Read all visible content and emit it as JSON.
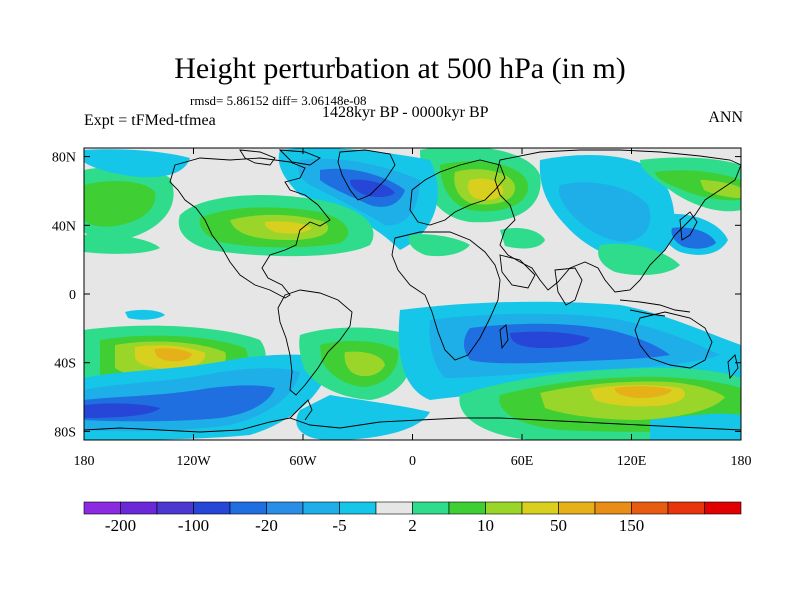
{
  "title": "Height perturbation at 500 hPa (in m)",
  "stats": "rmsd= 5.86152 diff= 3.06148e-08",
  "period": "1428kyr BP - 0000kyr BP",
  "experiment": "Expt = tFMed-tfmea",
  "season": "ANN",
  "axes": {
    "lat_labels": [
      "80N",
      "40N",
      "0",
      "40S",
      "80S"
    ],
    "lat_values": [
      80,
      40,
      0,
      -40,
      -80
    ],
    "lon_labels": [
      "180",
      "120W",
      "60W",
      "0",
      "60E",
      "120E",
      "180"
    ],
    "lon_values": [
      -180,
      -120,
      -60,
      0,
      60,
      120,
      180
    ]
  },
  "colorbar": {
    "colors": [
      "#8a2be2",
      "#6a28d8",
      "#4b38d0",
      "#2546d6",
      "#1f6fe0",
      "#2a8ee6",
      "#1eaee8",
      "#16c6e8",
      "#e6e6e6",
      "#2edc8c",
      "#3fce33",
      "#9ad62a",
      "#d8cf1f",
      "#e6b018",
      "#e88d15",
      "#e85c12",
      "#e8350e",
      "#e00000"
    ],
    "labels": [
      "-200",
      "-100",
      "-20",
      "-5",
      "2",
      "10",
      "50",
      "150"
    ],
    "label_boundaries": [
      1,
      3,
      5,
      7,
      9,
      11,
      13,
      15
    ]
  },
  "colors": {
    "land_outline": "#000000",
    "background": "#e6e6e6"
  }
}
